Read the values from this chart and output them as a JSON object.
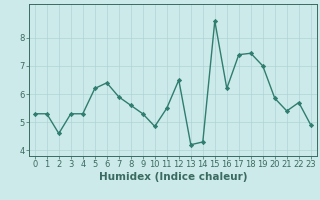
{
  "x": [
    0,
    1,
    2,
    3,
    4,
    5,
    6,
    7,
    8,
    9,
    10,
    11,
    12,
    13,
    14,
    15,
    16,
    17,
    18,
    19,
    20,
    21,
    22,
    23
  ],
  "y": [
    5.3,
    5.3,
    4.6,
    5.3,
    5.3,
    6.2,
    6.4,
    5.9,
    5.6,
    5.3,
    4.85,
    5.5,
    6.5,
    4.2,
    4.3,
    8.6,
    6.2,
    7.4,
    7.45,
    7.0,
    5.85,
    5.4,
    5.7,
    4.9
  ],
  "line_color": "#2e7d6e",
  "marker": "D",
  "marker_size": 2.2,
  "linewidth": 1.0,
  "xlabel": "Humidex (Indice chaleur)",
  "xlim": [
    -0.5,
    23.5
  ],
  "ylim": [
    3.8,
    9.2
  ],
  "yticks": [
    4,
    5,
    6,
    7,
    8
  ],
  "xticks": [
    0,
    1,
    2,
    3,
    4,
    5,
    6,
    7,
    8,
    9,
    10,
    11,
    12,
    13,
    14,
    15,
    16,
    17,
    18,
    19,
    20,
    21,
    22,
    23
  ],
  "bg_color": "#cdeaea",
  "grid_color": "#aed4d4",
  "axis_color": "#3a6b60",
  "xlabel_fontsize": 7.5,
  "tick_fontsize": 6.0
}
